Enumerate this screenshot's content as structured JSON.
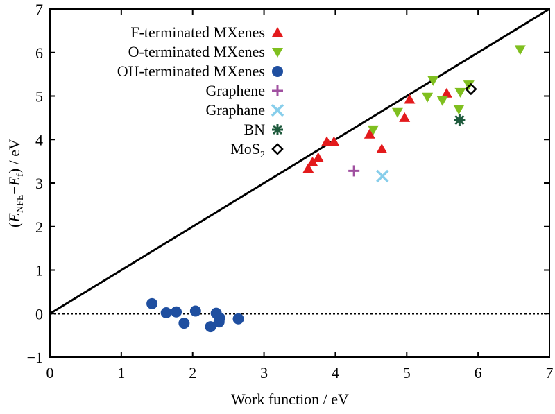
{
  "chart_data": {
    "type": "scatter",
    "xlabel": "Work function / eV",
    "ylabel_parts": {
      "open": "(",
      "E1": "E",
      "sub1": "NFE",
      "minus": "−",
      "E2": "E",
      "sub2": "f",
      "close": ") / eV"
    },
    "xlim": [
      0,
      7
    ],
    "ylim": [
      -1,
      7
    ],
    "x_ticks": [
      "0",
      "1",
      "2",
      "3",
      "4",
      "5",
      "6",
      "7"
    ],
    "y_ticks": [
      "−1",
      "0",
      "1",
      "2",
      "3",
      "4",
      "5",
      "6",
      "7"
    ],
    "reference_lines": [
      {
        "style": "solid",
        "points": [
          [
            0,
            0
          ],
          [
            7,
            7
          ]
        ]
      },
      {
        "style": "dotted",
        "points": [
          [
            0,
            0
          ],
          [
            7,
            0
          ]
        ]
      }
    ],
    "legend_position": "top-left",
    "series": [
      {
        "name": "F-terminated MXenes",
        "marker": "triangle-up",
        "color": "#e31a1c",
        "points": [
          [
            3.62,
            3.33
          ],
          [
            3.68,
            3.48
          ],
          [
            3.76,
            3.58
          ],
          [
            3.88,
            3.95
          ],
          [
            3.98,
            3.95
          ],
          [
            4.48,
            4.12
          ],
          [
            4.65,
            3.78
          ],
          [
            4.97,
            4.5
          ],
          [
            5.04,
            4.92
          ],
          [
            5.56,
            5.06
          ]
        ]
      },
      {
        "name": "O-terminated MXenes",
        "marker": "triangle-down",
        "color": "#7fbf1f",
        "points": [
          [
            4.53,
            4.23
          ],
          [
            4.87,
            4.63
          ],
          [
            5.29,
            4.98
          ],
          [
            5.37,
            5.36
          ],
          [
            5.5,
            4.9
          ],
          [
            5.73,
            4.7
          ],
          [
            5.75,
            5.09
          ],
          [
            5.87,
            5.26
          ],
          [
            6.59,
            6.07
          ]
        ]
      },
      {
        "name": "OH-terminated MXenes",
        "marker": "circle",
        "color": "#1f4fa0",
        "points": [
          [
            1.43,
            0.23
          ],
          [
            1.63,
            0.02
          ],
          [
            1.77,
            0.04
          ],
          [
            1.88,
            -0.22
          ],
          [
            2.04,
            0.06
          ],
          [
            2.25,
            -0.3
          ],
          [
            2.33,
            0.01
          ],
          [
            2.37,
            -0.19
          ],
          [
            2.38,
            -0.1
          ],
          [
            2.64,
            -0.12
          ]
        ]
      },
      {
        "name": "Graphene",
        "marker": "plus",
        "color": "#a050a0",
        "points": [
          [
            4.26,
            3.28
          ]
        ]
      },
      {
        "name": "Graphane",
        "marker": "x",
        "color": "#87ceeb",
        "points": [
          [
            4.66,
            3.16
          ]
        ]
      },
      {
        "name": "BN",
        "marker": "asterisk",
        "color": "#1e5a3c",
        "points": [
          [
            5.74,
            4.45
          ]
        ]
      },
      {
        "name_parts": {
          "base": "MoS",
          "sub": "2"
        },
        "marker": "diamond",
        "color": "#000000",
        "points": [
          [
            5.9,
            5.16
          ]
        ]
      }
    ]
  }
}
